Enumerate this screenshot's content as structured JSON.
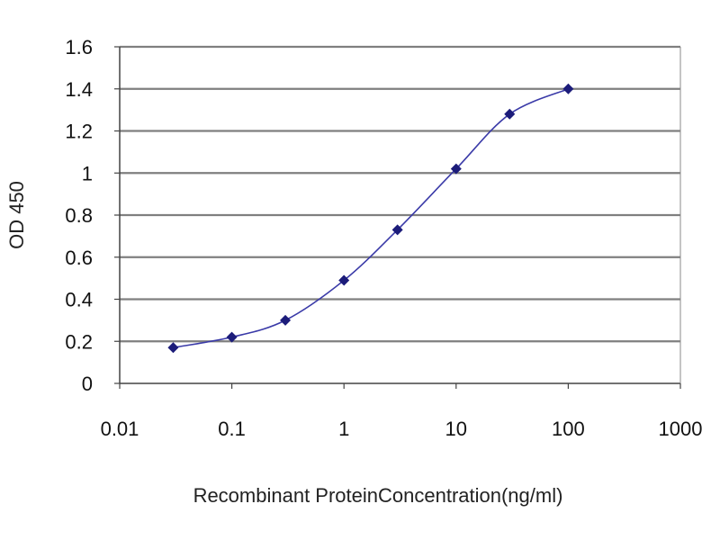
{
  "chart_data": {
    "type": "line",
    "title": "",
    "xlabel": "Recombinant ProteinConcentration(ng/ml)",
    "ylabel": "OD 450",
    "x_scale": "log",
    "xlim": [
      0.01,
      1000
    ],
    "ylim": [
      0,
      1.6
    ],
    "x_ticks": [
      "0.01",
      "0.1",
      "1",
      "10",
      "100",
      "1000"
    ],
    "y_ticks": [
      "0",
      "0.2",
      "0.4",
      "0.6",
      "0.8",
      "1",
      "1.2",
      "1.4",
      "1.6"
    ],
    "grid": "horizontal",
    "legend": "none",
    "line_color": "#3a3aa8",
    "marker_color": "#1c1c7a",
    "grid_color": "#7f7f7f",
    "series": [
      {
        "x": [
          0.03,
          0.1,
          0.3,
          1,
          3,
          10,
          30,
          100
        ],
        "y": [
          0.17,
          0.22,
          0.3,
          0.49,
          0.73,
          1.02,
          1.28,
          1.4
        ]
      }
    ]
  }
}
